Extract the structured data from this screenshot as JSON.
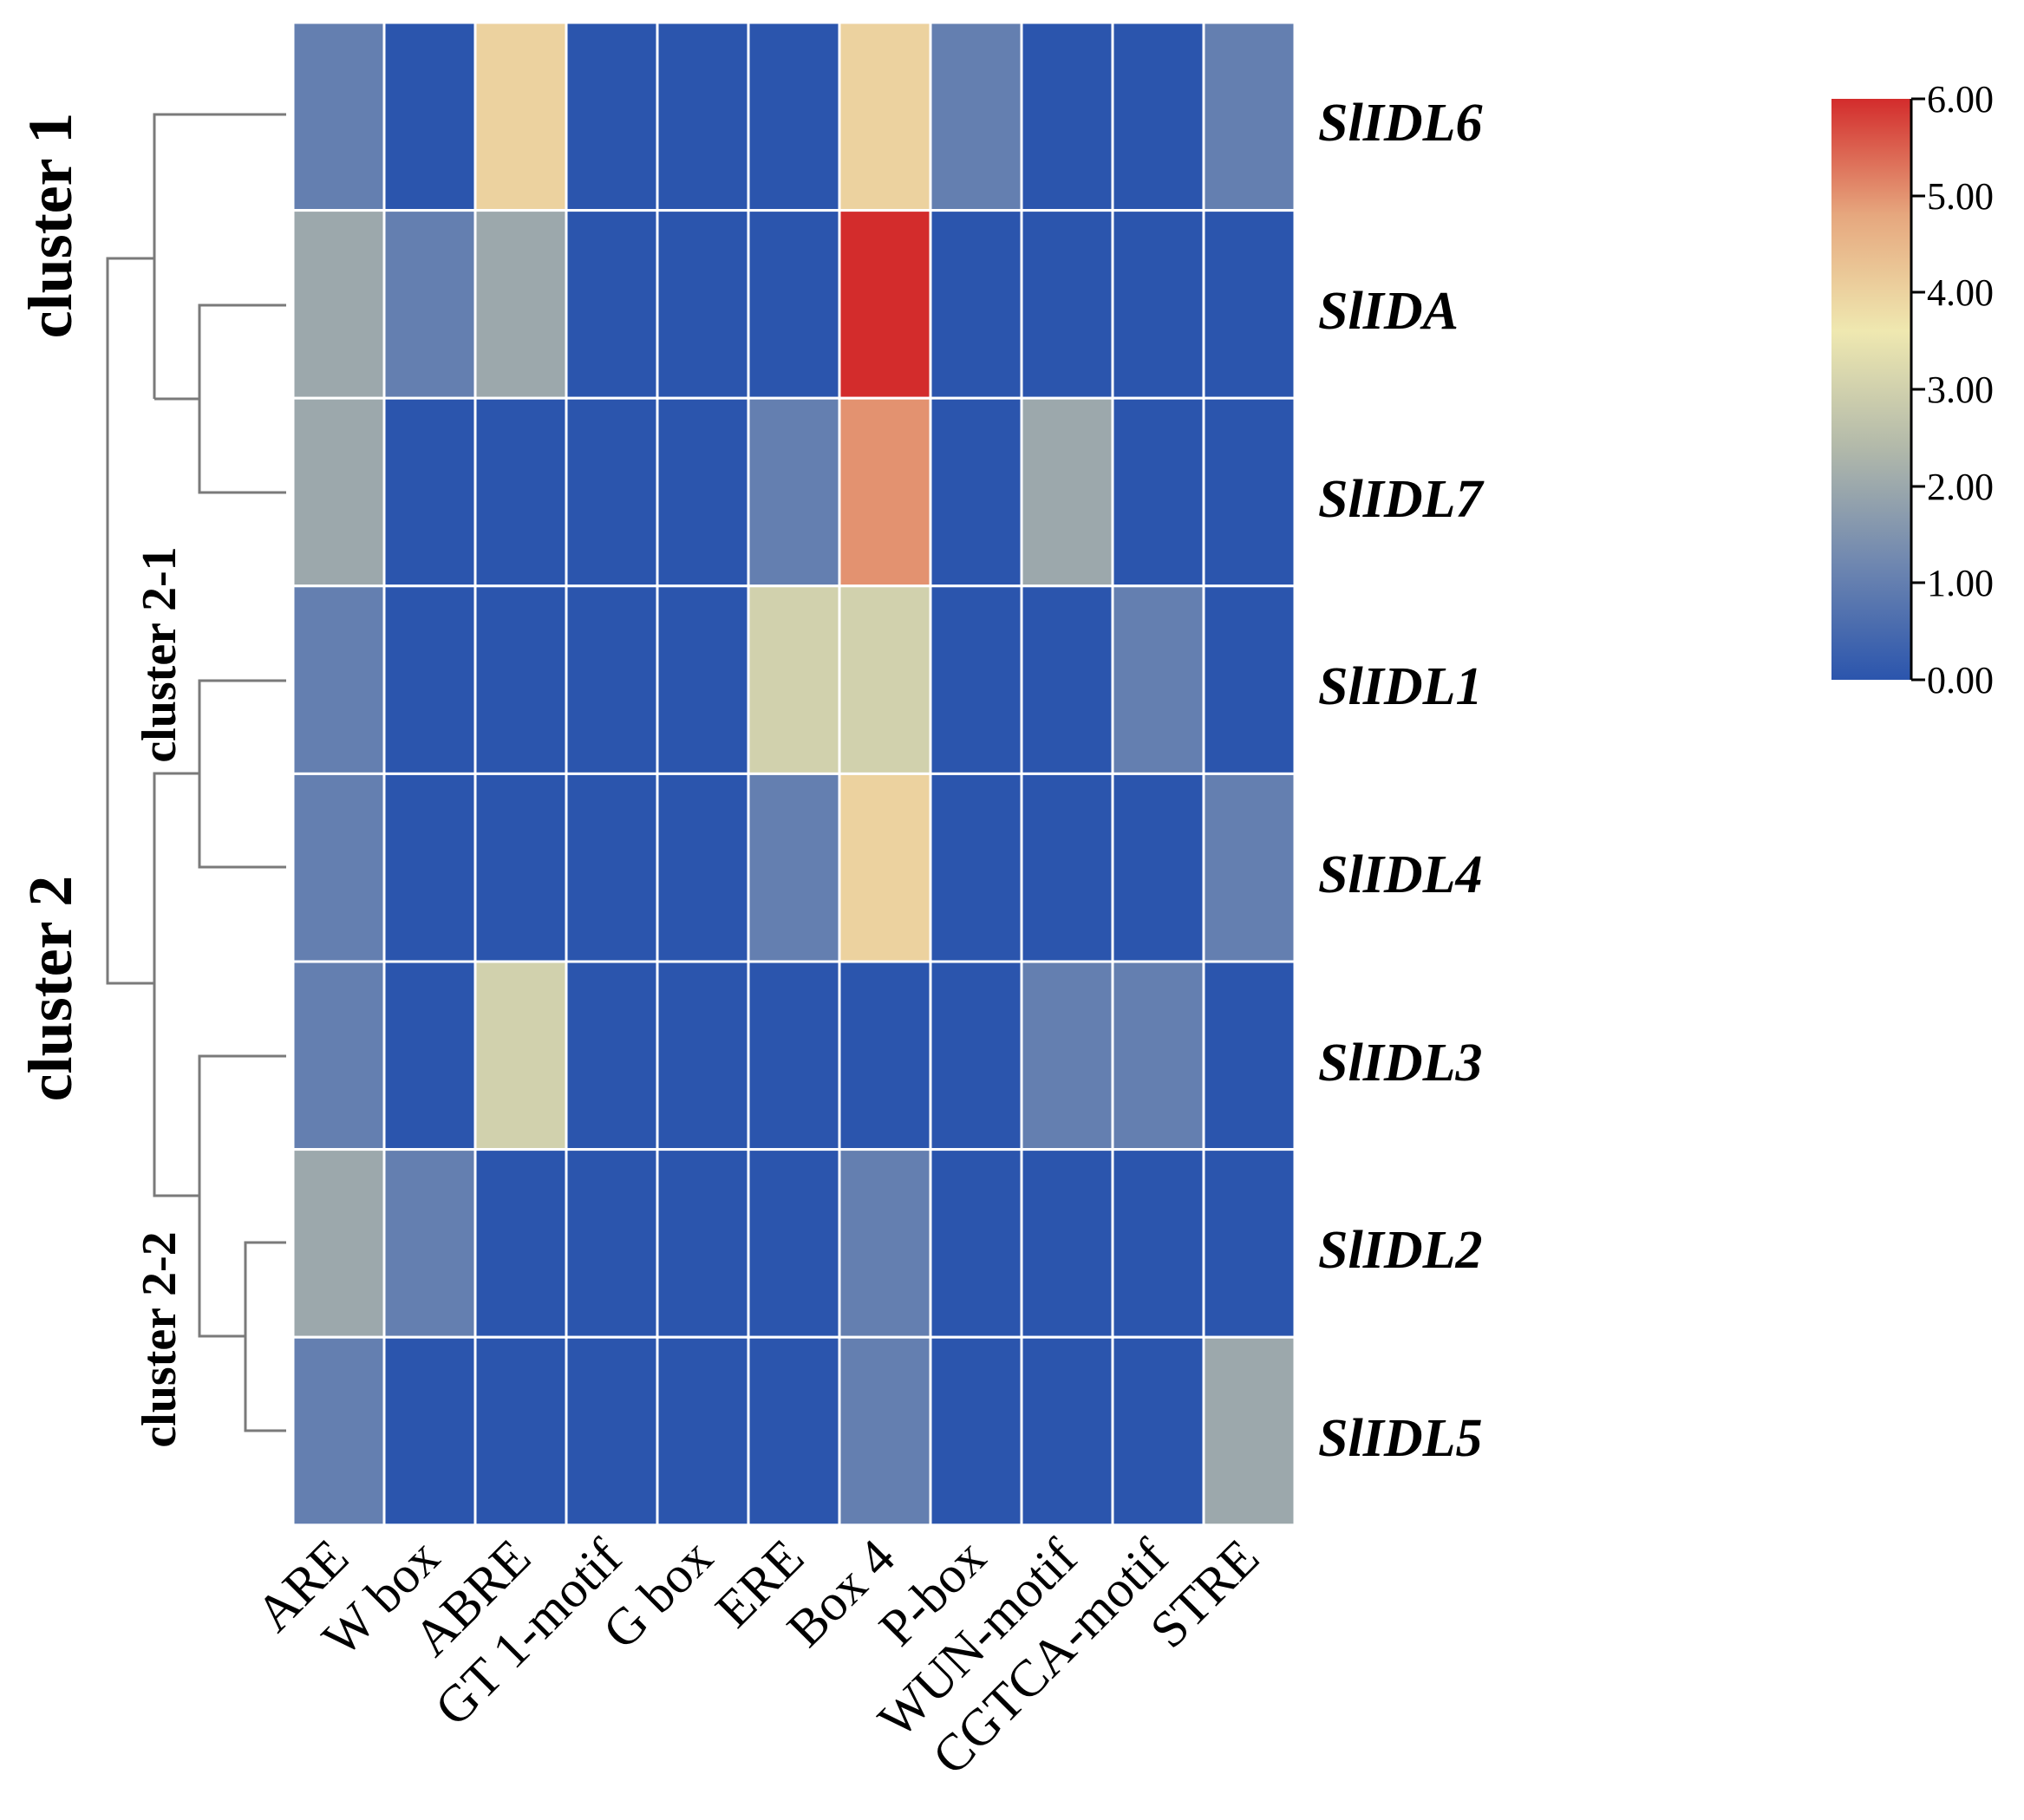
{
  "chart_data": {
    "type": "heatmap",
    "title": "",
    "rows": [
      "SlIDL6",
      "SlIDA",
      "SlIDL7",
      "SlIDL1",
      "SlIDL4",
      "SlIDL3",
      "SlIDL2",
      "SlIDL5"
    ],
    "columns": [
      "ARE",
      "W box",
      "ABRE",
      "GT 1-motif",
      "G box",
      "ERE",
      "Box 4",
      "P-box",
      "WUN-motif",
      "CGTCA-motif",
      "STRE"
    ],
    "values": [
      [
        1,
        0,
        4,
        0,
        0,
        0,
        4,
        1,
        0,
        0,
        1
      ],
      [
        2,
        1,
        2,
        0,
        0,
        0,
        6,
        0,
        0,
        0,
        0
      ],
      [
        2,
        0,
        0,
        0,
        0,
        1,
        5,
        0,
        2,
        0,
        0
      ],
      [
        1,
        0,
        0,
        0,
        0,
        3,
        3,
        0,
        0,
        1,
        0
      ],
      [
        1,
        0,
        0,
        0,
        0,
        1,
        4,
        0,
        0,
        0,
        1
      ],
      [
        1,
        0,
        3,
        0,
        0,
        0,
        0,
        0,
        1,
        1,
        0
      ],
      [
        2,
        1,
        0,
        0,
        0,
        0,
        1,
        0,
        0,
        0,
        0
      ],
      [
        1,
        0,
        0,
        0,
        0,
        0,
        1,
        0,
        0,
        0,
        2
      ]
    ],
    "colorbar": {
      "range": [
        0,
        6
      ],
      "ticks": [
        "6.00",
        "5.00",
        "4.00",
        "3.00",
        "2.00",
        "1.00",
        "0.00"
      ],
      "colors": [
        "#2b55ad",
        "#6f87b0",
        "#b2b9aa",
        "#efe8b0",
        "#e6a77e",
        "#d32c2c"
      ]
    },
    "clusters": [
      "cluster 1",
      "cluster 2",
      "cluster 2-1",
      "cluster 2-2"
    ]
  }
}
